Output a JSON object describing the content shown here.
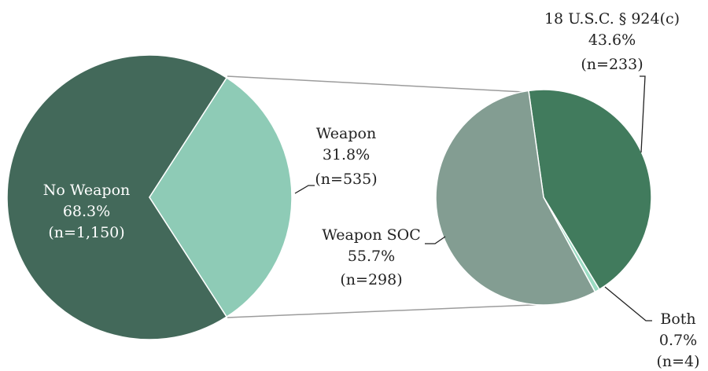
{
  "chart_data": {
    "type": "pie",
    "title": "",
    "main_pie": {
      "slices": [
        {
          "label": "No Weapon",
          "percent": 68.3,
          "count": 1150,
          "percent_text": "68.3%",
          "count_text": "(n=1,150)",
          "color": "#43695A"
        },
        {
          "label": "Weapon",
          "percent": 31.8,
          "count": 535,
          "percent_text": "31.8%",
          "count_text": "(n=535)",
          "color": "#8ECBB6"
        }
      ]
    },
    "breakout_pie": {
      "parent": "Weapon",
      "slices": [
        {
          "label": "18 U.S.C. § 924(c)",
          "percent": 43.6,
          "count": 233,
          "percent_text": "43.6%",
          "count_text": "(n=233)",
          "color": "#417B5D"
        },
        {
          "label": "Both",
          "percent": 0.7,
          "count": 4,
          "percent_text": "0.7%",
          "count_text": "(n=4)",
          "color": "#9BDCC3"
        },
        {
          "label": "Weapon SOC",
          "percent": 55.7,
          "count": 298,
          "percent_text": "55.7%",
          "count_text": "(n=298)",
          "color": "#839D92"
        }
      ]
    }
  }
}
